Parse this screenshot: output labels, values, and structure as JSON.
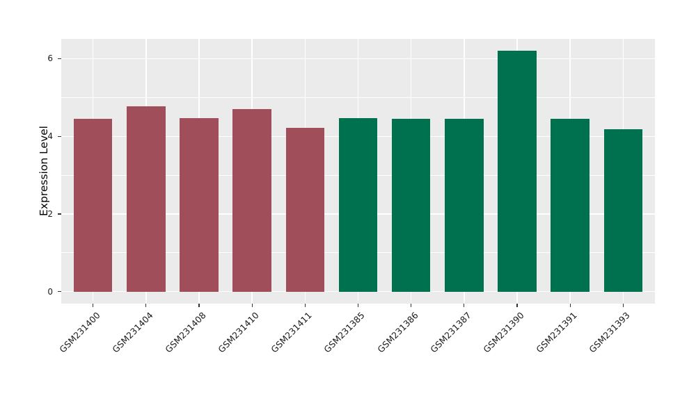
{
  "chart_data": {
    "type": "bar",
    "title": "",
    "xlabel": "",
    "ylabel": "Expression Level",
    "categories": [
      "GSM231400",
      "GSM231404",
      "GSM231408",
      "GSM231410",
      "GSM231411",
      "GSM231385",
      "GSM231386",
      "GSM231387",
      "GSM231390",
      "GSM231391",
      "GSM231393"
    ],
    "values": [
      4.45,
      4.78,
      4.47,
      4.7,
      4.22,
      4.47,
      4.45,
      4.45,
      6.2,
      4.45,
      4.18
    ],
    "group": [
      "A",
      "A",
      "A",
      "A",
      "A",
      "B",
      "B",
      "B",
      "B",
      "B",
      "B"
    ],
    "group_colors": {
      "A": "#A04E5A",
      "B": "#00714E"
    },
    "yticks": [
      0,
      2,
      4,
      6
    ],
    "yticks_minor": [
      1,
      3,
      5
    ],
    "ylim": [
      -0.31,
      6.51
    ],
    "grid": true,
    "legend": "none",
    "panel_bg": "#EBEBEB",
    "grid_color": "#FFFFFF",
    "tick_color": "#333333",
    "text_color": "#1A1A1A"
  }
}
